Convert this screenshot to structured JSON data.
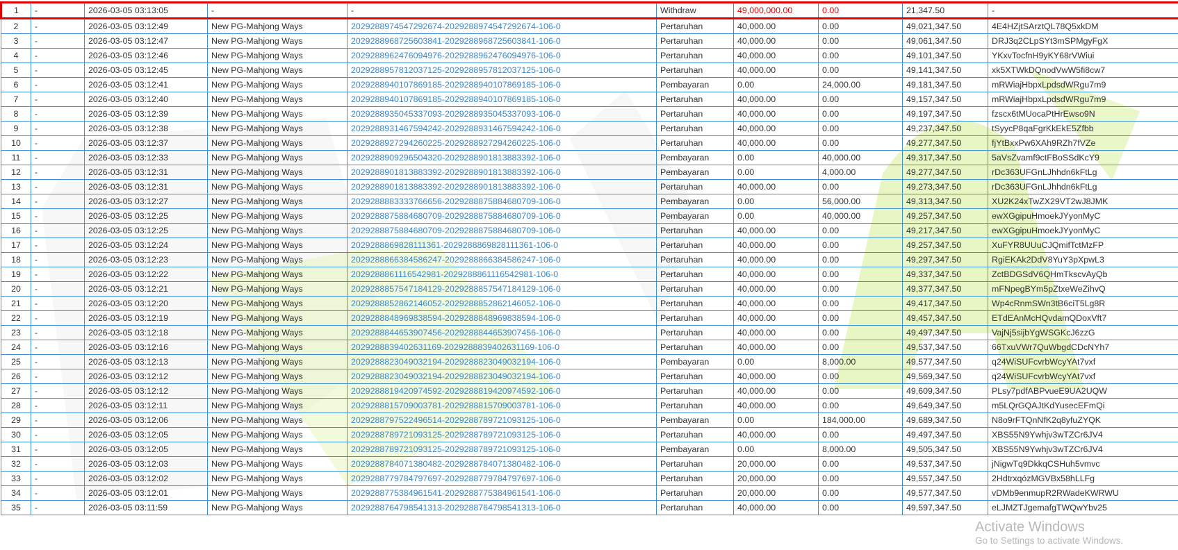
{
  "colors": {
    "border": "#3f8fd8",
    "link": "#3a87cc",
    "highlight": "#e00000",
    "text": "#333333"
  },
  "highlighted_row": 1,
  "rows": [
    [
      "1",
      "-",
      "2026-03-05 03:13:05",
      "-",
      "-",
      "Withdraw",
      "49,000,000.00",
      "0.00",
      "21,347.50",
      "-"
    ],
    [
      "2",
      "-",
      "2026-03-05 03:12:49",
      "New PG-Mahjong Ways",
      "2029288974547292674-2029288974547292674-106-0",
      "Pertaruhan",
      "40,000.00",
      "0.00",
      "49,021,347.50",
      "4E4HZjtSArztQL78Q5xkDM"
    ],
    [
      "3",
      "-",
      "2026-03-05 03:12:47",
      "New PG-Mahjong Ways",
      "2029288968725603841-2029288968725603841-106-0",
      "Pertaruhan",
      "40,000.00",
      "0.00",
      "49,061,347.50",
      "DRJ3q2CLpSYt3mSPMgyFgX"
    ],
    [
      "4",
      "-",
      "2026-03-05 03:12:46",
      "New PG-Mahjong Ways",
      "2029288962476094976-2029288962476094976-106-0",
      "Pertaruhan",
      "40,000.00",
      "0.00",
      "49,101,347.50",
      "YKxvTocfnH9yKY68rVWiui"
    ],
    [
      "5",
      "-",
      "2026-03-05 03:12:45",
      "New PG-Mahjong Ways",
      "2029288957812037125-2029288957812037125-106-0",
      "Pertaruhan",
      "40,000.00",
      "0.00",
      "49,141,347.50",
      "xk5XTWkDQnodVwW5fi8cw7"
    ],
    [
      "6",
      "-",
      "2026-03-05 03:12:41",
      "New PG-Mahjong Ways",
      "2029288940107869185-2029288940107869185-106-0",
      "Pembayaran",
      "0.00",
      "24,000.00",
      "49,181,347.50",
      "mRWiajHbpxLpdsdWRgu7m9"
    ],
    [
      "7",
      "-",
      "2026-03-05 03:12:40",
      "New PG-Mahjong Ways",
      "2029288940107869185-2029288940107869185-106-0",
      "Pertaruhan",
      "40,000.00",
      "0.00",
      "49,157,347.50",
      "mRWiajHbpxLpdsdWRgu7m9"
    ],
    [
      "8",
      "-",
      "2026-03-05 03:12:39",
      "New PG-Mahjong Ways",
      "2029288935045337093-2029288935045337093-106-0",
      "Pertaruhan",
      "40,000.00",
      "0.00",
      "49,197,347.50",
      "fzscx6tMUocaPtHrEwso9N"
    ],
    [
      "9",
      "-",
      "2026-03-05 03:12:38",
      "New PG-Mahjong Ways",
      "2029288931467594242-2029288931467594242-106-0",
      "Pertaruhan",
      "40,000.00",
      "0.00",
      "49,237,347.50",
      "tSyycP8qaFgrKkEkE5Zfbb"
    ],
    [
      "10",
      "-",
      "2026-03-05 03:12:37",
      "New PG-Mahjong Ways",
      "2029288927294260225-2029288927294260225-106-0",
      "Pertaruhan",
      "40,000.00",
      "0.00",
      "49,277,347.50",
      "fjYtBxxPw6XAh9RZh7fVZe"
    ],
    [
      "11",
      "-",
      "2026-03-05 03:12:33",
      "New PG-Mahjong Ways",
      "2029288909296504320-2029288901813883392-106-0",
      "Pembayaran",
      "0.00",
      "40,000.00",
      "49,317,347.50",
      "5aVsZvamf9ctFBoSSdKcY9"
    ],
    [
      "12",
      "-",
      "2026-03-05 03:12:31",
      "New PG-Mahjong Ways",
      "2029288901813883392-2029288901813883392-106-0",
      "Pembayaran",
      "0.00",
      "4,000.00",
      "49,277,347.50",
      "rDc363UFGnLJhhdn6kFtLg"
    ],
    [
      "13",
      "-",
      "2026-03-05 03:12:31",
      "New PG-Mahjong Ways",
      "2029288901813883392-2029288901813883392-106-0",
      "Pertaruhan",
      "40,000.00",
      "0.00",
      "49,273,347.50",
      "rDc363UFGnLJhhdn6kFtLg"
    ],
    [
      "14",
      "-",
      "2026-03-05 03:12:27",
      "New PG-Mahjong Ways",
      "2029288883333766656-2029288875884680709-106-0",
      "Pembayaran",
      "0.00",
      "56,000.00",
      "49,313,347.50",
      "XU2K24xTwZX29VT2wJ8JMK"
    ],
    [
      "15",
      "-",
      "2026-03-05 03:12:25",
      "New PG-Mahjong Ways",
      "2029288875884680709-2029288875884680709-106-0",
      "Pembayaran",
      "0.00",
      "40,000.00",
      "49,257,347.50",
      "ewXGgipuHmoekJYyonMyC"
    ],
    [
      "16",
      "-",
      "2026-03-05 03:12:25",
      "New PG-Mahjong Ways",
      "2029288875884680709-2029288875884680709-106-0",
      "Pertaruhan",
      "40,000.00",
      "0.00",
      "49,217,347.50",
      "ewXGgipuHmoekJYyonMyC"
    ],
    [
      "17",
      "-",
      "2026-03-05 03:12:24",
      "New PG-Mahjong Ways",
      "2029288869828111361-2029288869828111361-106-0",
      "Pertaruhan",
      "40,000.00",
      "0.00",
      "49,257,347.50",
      "XuFYR8UUuCJQmifTctMzFP"
    ],
    [
      "18",
      "-",
      "2026-03-05 03:12:23",
      "New PG-Mahjong Ways",
      "2029288866384586247-2029288866384586247-106-0",
      "Pertaruhan",
      "40,000.00",
      "0.00",
      "49,297,347.50",
      "RgiEKAk2DdV8YuY3pXpwL3"
    ],
    [
      "19",
      "-",
      "2026-03-05 03:12:22",
      "New PG-Mahjong Ways",
      "2029288861116542981-2029288861116542981-106-0",
      "Pertaruhan",
      "40,000.00",
      "0.00",
      "49,337,347.50",
      "ZctBDGSdV6QHmTkscvAyQb"
    ],
    [
      "20",
      "-",
      "2026-03-05 03:12:21",
      "New PG-Mahjong Ways",
      "2029288857547184129-2029288857547184129-106-0",
      "Pertaruhan",
      "40,000.00",
      "0.00",
      "49,377,347.50",
      "mFNpegBYm5pZtxeWeZihvQ"
    ],
    [
      "21",
      "-",
      "2026-03-05 03:12:20",
      "New PG-Mahjong Ways",
      "2029288852862146052-2029288852862146052-106-0",
      "Pertaruhan",
      "40,000.00",
      "0.00",
      "49,417,347.50",
      "Wp4cRnmSWn3tB6ciT5Lg8R"
    ],
    [
      "22",
      "-",
      "2026-03-05 03:12:19",
      "New PG-Mahjong Ways",
      "2029288848969838594-2029288848969838594-106-0",
      "Pertaruhan",
      "40,000.00",
      "0.00",
      "49,457,347.50",
      "ETdEAnMcHQvdamQDoxVft7"
    ],
    [
      "23",
      "-",
      "2026-03-05 03:12:18",
      "New PG-Mahjong Ways",
      "2029288844653907456-2029288844653907456-106-0",
      "Pertaruhan",
      "40,000.00",
      "0.00",
      "49,497,347.50",
      "VajNj5sijbYgWSGKcJ6zzG"
    ],
    [
      "24",
      "-",
      "2026-03-05 03:12:16",
      "New PG-Mahjong Ways",
      "2029288839402631169-2029288839402631169-106-0",
      "Pertaruhan",
      "40,000.00",
      "0.00",
      "49,537,347.50",
      "66TxuVWr7QuWbgdCDcNYh7"
    ],
    [
      "25",
      "-",
      "2026-03-05 03:12:13",
      "New PG-Mahjong Ways",
      "2029288823049032194-2029288823049032194-106-0",
      "Pembayaran",
      "0.00",
      "8,000.00",
      "49,577,347.50",
      "q24WiSUFcvrbWcyYAt7vxf"
    ],
    [
      "26",
      "-",
      "2026-03-05 03:12:12",
      "New PG-Mahjong Ways",
      "2029288823049032194-2029288823049032194-106-0",
      "Pertaruhan",
      "40,000.00",
      "0.00",
      "49,569,347.50",
      "q24WiSUFcvrbWcyYAt7vxf"
    ],
    [
      "27",
      "-",
      "2026-03-05 03:12:12",
      "New PG-Mahjong Ways",
      "2029288819420974592-2029288819420974592-106-0",
      "Pertaruhan",
      "40,000.00",
      "0.00",
      "49,609,347.50",
      "PLsy7pdfABPvueE9UA2UQW"
    ],
    [
      "28",
      "-",
      "2026-03-05 03:12:11",
      "New PG-Mahjong Ways",
      "2029288815709003781-2029288815709003781-106-0",
      "Pertaruhan",
      "40,000.00",
      "0.00",
      "49,649,347.50",
      "m5LQrGQAJtKdYusecEFmQi"
    ],
    [
      "29",
      "-",
      "2026-03-05 03:12:06",
      "New PG-Mahjong Ways",
      "2029288797522496514-2029288789721093125-106-0",
      "Pembayaran",
      "0.00",
      "184,000.00",
      "49,689,347.50",
      "N8o9rFTQnNfK2q8yfuZYQK"
    ],
    [
      "30",
      "-",
      "2026-03-05 03:12:05",
      "New PG-Mahjong Ways",
      "2029288789721093125-2029288789721093125-106-0",
      "Pertaruhan",
      "40,000.00",
      "0.00",
      "49,497,347.50",
      "XBS55N9Ywhjv3wTZCr6JV4"
    ],
    [
      "31",
      "-",
      "2026-03-05 03:12:05",
      "New PG-Mahjong Ways",
      "2029288789721093125-2029288789721093125-106-0",
      "Pembayaran",
      "0.00",
      "8,000.00",
      "49,505,347.50",
      "XBS55N9Ywhjv3wTZCr6JV4"
    ],
    [
      "32",
      "-",
      "2026-03-05 03:12:03",
      "New PG-Mahjong Ways",
      "2029288784071380482-2029288784071380482-106-0",
      "Pertaruhan",
      "20,000.00",
      "0.00",
      "49,537,347.50",
      "jNigwTq9DkkqCSHuh5vmvc"
    ],
    [
      "33",
      "-",
      "2026-03-05 03:12:02",
      "New PG-Mahjong Ways",
      "2029288779784797697-2029288779784797697-106-0",
      "Pertaruhan",
      "20,000.00",
      "0.00",
      "49,557,347.50",
      "2HdtrxqózMGVBx58hLLFg"
    ],
    [
      "34",
      "-",
      "2026-03-05 03:12:01",
      "New PG-Mahjong Ways",
      "2029288775384961541-2029288775384961541-106-0",
      "Pertaruhan",
      "20,000.00",
      "0.00",
      "49,577,347.50",
      "vDMb9enmupR2RWadeKWRWU"
    ],
    [
      "35",
      "-",
      "2026-03-05 03:11:59",
      "New PG-Mahjong Ways",
      "2029288764798541313-2029288764798541313-106-0",
      "Pertaruhan",
      "40,000.00",
      "0.00",
      "49,597,347.50",
      "eLJMZTJgemafgTWQwYbv25"
    ]
  ],
  "os_overlay": {
    "line1": "Activate Windows",
    "line2": "Go to Settings to activate Windows."
  }
}
